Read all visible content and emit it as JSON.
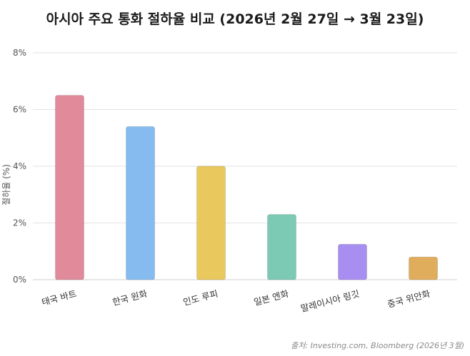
{
  "chart_data": {
    "type": "bar",
    "title": "아시아 주요 통화 절하율 비교 (2026년 2월 27일 → 3월 23일)",
    "ylabel": "절하율 (%)",
    "xlabel": "",
    "ylim": [
      0,
      8
    ],
    "yticks": [
      0,
      2,
      4,
      6,
      8
    ],
    "ytick_labels": [
      "0%",
      "2%",
      "4%",
      "6%",
      "8%"
    ],
    "grid": true,
    "categories": [
      "태국 바트",
      "한국 원화",
      "인도 루피",
      "일본 엔화",
      "말레이시아 링깃",
      "중국 위안화"
    ],
    "values": [
      6.5,
      5.4,
      4.0,
      2.3,
      1.25,
      0.8
    ],
    "colors": [
      "#e08a9a",
      "#86bbf0",
      "#e9c95e",
      "#7dcab4",
      "#a88ef0",
      "#e0ad5c"
    ],
    "source": "출처: Investing.com, Bloomberg (2026년 3월)"
  }
}
